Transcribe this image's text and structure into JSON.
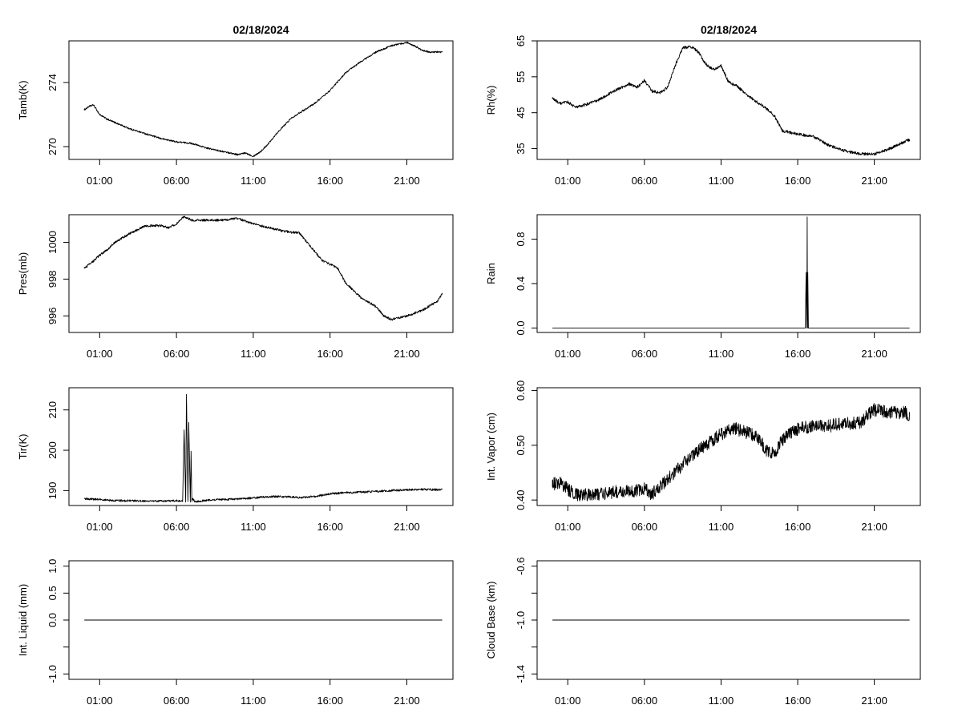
{
  "chart_data": [
    {
      "id": "tamb",
      "type": "line",
      "title": "02/18/2024",
      "xlabel": "",
      "ylabel": "Tamb(K)",
      "xlim": [
        -1.0,
        24.0
      ],
      "ylim": [
        269.2,
        276.6
      ],
      "xticks": [
        "01:00",
        "06:00",
        "11:00",
        "16:00",
        "21:00"
      ],
      "xtick_hours": [
        1,
        6,
        11,
        16,
        21
      ],
      "yticks": [
        {
          "value": 270,
          "label": "270"
        },
        {
          "value": 274,
          "label": "274"
        }
      ],
      "noise": 0.05,
      "x": [
        0,
        0.3,
        0.6,
        1,
        1.5,
        2,
        3,
        4,
        5,
        6,
        7,
        8,
        9,
        10,
        10.5,
        11,
        11.5,
        12,
        12.5,
        13,
        13.5,
        14,
        15,
        16,
        17,
        18,
        19,
        20,
        21,
        21.5,
        22,
        22.5,
        23,
        23.3
      ],
      "y": [
        272.3,
        272.5,
        272.6,
        272.0,
        271.7,
        271.5,
        271.1,
        270.8,
        270.5,
        270.3,
        270.2,
        269.9,
        269.7,
        269.5,
        269.6,
        269.4,
        269.7,
        270.2,
        270.8,
        271.3,
        271.8,
        272.1,
        272.7,
        273.5,
        274.6,
        275.3,
        275.9,
        276.3,
        276.5,
        276.3,
        276.0,
        275.9,
        275.9,
        275.9
      ]
    },
    {
      "id": "rh",
      "type": "line",
      "title": "02/18/2024",
      "xlabel": "",
      "ylabel": "Rh(%)",
      "xlim": [
        -1.0,
        24.0
      ],
      "ylim": [
        32,
        65
      ],
      "xticks": [
        "01:00",
        "06:00",
        "11:00",
        "16:00",
        "21:00"
      ],
      "xtick_hours": [
        1,
        6,
        11,
        16,
        21
      ],
      "yticks": [
        {
          "value": 35,
          "label": "35"
        },
        {
          "value": 45,
          "label": "45"
        },
        {
          "value": 55,
          "label": "55"
        },
        {
          "value": 65,
          "label": "65"
        }
      ],
      "noise": 0.4,
      "x": [
        0,
        0.5,
        1,
        1.5,
        2,
        3,
        4,
        5,
        5.5,
        6,
        6.5,
        7,
        7.5,
        8,
        8.5,
        9,
        9.5,
        10,
        10.5,
        11,
        11.5,
        12,
        13,
        14,
        14.5,
        15,
        15.5,
        16,
        17,
        18,
        19,
        20,
        21,
        22,
        23,
        23.3
      ],
      "y": [
        49,
        47.5,
        48,
        46.5,
        47,
        48.5,
        51,
        53,
        52,
        54,
        51,
        50.5,
        52,
        58,
        63,
        63.5,
        62,
        58.5,
        57,
        58,
        53.5,
        52.5,
        49,
        46,
        44,
        40,
        39.5,
        39,
        38.5,
        36,
        34.5,
        33.5,
        33.5,
        35,
        37,
        37.5
      ]
    },
    {
      "id": "pres",
      "type": "line",
      "title": "",
      "xlabel": "",
      "ylabel": "Pres(mb)",
      "xlim": [
        -1.0,
        24.0
      ],
      "ylim": [
        995.1,
        1001.5
      ],
      "xticks": [
        "01:00",
        "06:00",
        "11:00",
        "16:00",
        "21:00"
      ],
      "xtick_hours": [
        1,
        6,
        11,
        16,
        21
      ],
      "yticks": [
        {
          "value": 996,
          "label": "996"
        },
        {
          "value": 998,
          "label": "998"
        },
        {
          "value": 1000,
          "label": "1000"
        }
      ],
      "noise": 0.06,
      "x": [
        0,
        0.5,
        1,
        1.5,
        2,
        3,
        4,
        5,
        5.5,
        6,
        6.5,
        7,
        8,
        9,
        10,
        11,
        12,
        13,
        14,
        14.5,
        15,
        15.5,
        16,
        16.5,
        17,
        18,
        19,
        19.5,
        20,
        21,
        22,
        23,
        23.3
      ],
      "y": [
        998.6,
        998.9,
        999.3,
        999.6,
        1000.0,
        1000.5,
        1000.9,
        1000.9,
        1000.8,
        1001.0,
        1001.4,
        1001.2,
        1001.2,
        1001.2,
        1001.3,
        1001.0,
        1000.8,
        1000.6,
        1000.5,
        1000.0,
        999.5,
        999.0,
        998.8,
        998.6,
        997.8,
        997.0,
        996.5,
        996.0,
        995.8,
        996.0,
        996.3,
        996.8,
        997.2
      ]
    },
    {
      "id": "rain",
      "type": "line",
      "title": "",
      "xlabel": "",
      "ylabel": "Rain",
      "xlim": [
        -1.0,
        24.0
      ],
      "ylim": [
        -0.04,
        1.02
      ],
      "xticks": [
        "01:00",
        "06:00",
        "11:00",
        "16:00",
        "21:00"
      ],
      "xtick_hours": [
        1,
        6,
        11,
        16,
        21
      ],
      "yticks": [
        {
          "value": 0.0,
          "label": "0.0"
        },
        {
          "value": 0.4,
          "label": "0.4"
        },
        {
          "value": 0.8,
          "label": "0.8"
        }
      ],
      "noise": 0,
      "x": [
        0,
        16.5,
        16.55,
        16.6,
        16.62,
        16.64,
        16.66,
        16.7,
        23.3
      ],
      "y": [
        0,
        0,
        0.5,
        0,
        1.0,
        0,
        0.5,
        0,
        0
      ]
    },
    {
      "id": "tir",
      "type": "line",
      "title": "",
      "xlabel": "",
      "ylabel": "Tir(K)",
      "xlim": [
        -1.0,
        24.0
      ],
      "ylim": [
        186.3,
        215.5
      ],
      "xticks": [
        "01:00",
        "06:00",
        "11:00",
        "16:00",
        "21:00"
      ],
      "xtick_hours": [
        1,
        6,
        11,
        16,
        21
      ],
      "yticks": [
        {
          "value": 190,
          "label": "190"
        },
        {
          "value": 200,
          "label": "200"
        },
        {
          "value": 210,
          "label": "210"
        }
      ],
      "noise": 0.25,
      "x": [
        0,
        1,
        2,
        3,
        4,
        5,
        6,
        6.4,
        6.5,
        6.6,
        6.65,
        6.7,
        6.75,
        6.8,
        6.9,
        6.95,
        7.0,
        7.05,
        7.2,
        8,
        9,
        10,
        11,
        12,
        13,
        14,
        15,
        16,
        17,
        18,
        19,
        20,
        21,
        22,
        23,
        23.3
      ],
      "y": [
        188.0,
        187.8,
        187.5,
        187.5,
        187.4,
        187.4,
        187.5,
        187.3,
        205.0,
        187.3,
        214.0,
        200.0,
        187.3,
        207.0,
        187.3,
        200.0,
        187.3,
        188.0,
        187.2,
        187.6,
        187.8,
        187.9,
        188.2,
        188.5,
        188.5,
        188.3,
        188.5,
        189.2,
        189.5,
        189.6,
        189.8,
        190.0,
        190.2,
        190.3,
        190.2,
        190.2
      ]
    },
    {
      "id": "vapor",
      "type": "line",
      "title": "",
      "xlabel": "",
      "ylabel": "Int. Vapor (cm)",
      "xlim": [
        -1.0,
        24.0
      ],
      "ylim": [
        0.39,
        0.605
      ],
      "xticks": [
        "01:00",
        "06:00",
        "11:00",
        "16:00",
        "21:00"
      ],
      "xtick_hours": [
        1,
        6,
        11,
        16,
        21
      ],
      "yticks": [
        {
          "value": 0.4,
          "label": "0.40"
        },
        {
          "value": 0.5,
          "label": "0.50"
        },
        {
          "value": 0.6,
          "label": "0.60"
        }
      ],
      "noise": 0.012,
      "x": [
        0,
        0.5,
        1,
        1.5,
        2,
        3,
        4,
        5,
        6,
        6.5,
        7,
        8,
        9,
        10,
        11,
        11.5,
        12,
        12.5,
        13,
        13.5,
        14,
        14.5,
        15,
        16,
        17,
        18,
        19,
        20,
        21,
        22,
        23,
        23.3
      ],
      "y": [
        0.43,
        0.43,
        0.42,
        0.41,
        0.41,
        0.41,
        0.415,
        0.415,
        0.42,
        0.41,
        0.425,
        0.45,
        0.48,
        0.5,
        0.52,
        0.53,
        0.53,
        0.525,
        0.52,
        0.51,
        0.49,
        0.485,
        0.51,
        0.53,
        0.535,
        0.535,
        0.54,
        0.54,
        0.565,
        0.56,
        0.56,
        0.555
      ]
    },
    {
      "id": "liquid",
      "type": "line",
      "title": "",
      "xlabel": "",
      "ylabel": "Int. Liquid (mm)",
      "xlim": [
        -1.0,
        24.0
      ],
      "ylim": [
        -1.1,
        1.1
      ],
      "xticks": [
        "01:00",
        "06:00",
        "11:00",
        "16:00",
        "21:00"
      ],
      "xtick_hours": [
        1,
        6,
        11,
        16,
        21
      ],
      "yticks": [
        {
          "value": -1.0,
          "label": "-1.0"
        },
        {
          "value": -0.5,
          "label": ""
        },
        {
          "value": 0.0,
          "label": "0.0"
        },
        {
          "value": 0.5,
          "label": "0.5"
        },
        {
          "value": 1.0,
          "label": "1.0"
        }
      ],
      "noise": 0,
      "x": [
        0,
        23.3
      ],
      "y": [
        0,
        0
      ]
    },
    {
      "id": "cloudbase",
      "type": "line",
      "title": "",
      "xlabel": "",
      "ylabel": "Cloud Base (km)",
      "xlim": [
        -1.0,
        24.0
      ],
      "ylim": [
        -1.44,
        -0.56
      ],
      "xticks": [
        "01:00",
        "06:00",
        "11:00",
        "16:00",
        "21:00"
      ],
      "xtick_hours": [
        1,
        6,
        11,
        16,
        21
      ],
      "yticks": [
        {
          "value": -1.4,
          "label": "-1.4"
        },
        {
          "value": -1.2,
          "label": ""
        },
        {
          "value": -1.0,
          "label": "-1.0"
        },
        {
          "value": -0.8,
          "label": ""
        },
        {
          "value": -0.6,
          "label": "-0.6"
        }
      ],
      "noise": 0,
      "x": [
        0,
        23.3
      ],
      "y": [
        -1.0,
        -1.0
      ]
    }
  ]
}
